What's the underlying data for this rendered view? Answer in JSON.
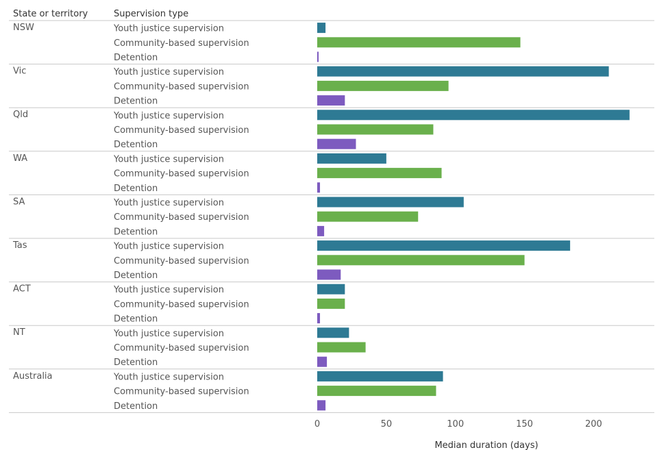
{
  "chart_data": {
    "type": "bar",
    "orientation": "horizontal",
    "column_headers": {
      "group": "State or territory",
      "category": "Supervision type"
    },
    "groups": [
      "NSW",
      "Vic",
      "Qld",
      "WA",
      "SA",
      "Tas",
      "ACT",
      "NT",
      "Australia"
    ],
    "categories": [
      "Youth justice supervision",
      "Community-based supervision",
      "Detention"
    ],
    "colors": {
      "Youth justice supervision": "#2e7a94",
      "Community-based supervision": "#6ab04c",
      "Detention": "#7d5bbf"
    },
    "values": [
      [
        6,
        147,
        1
      ],
      [
        211,
        95,
        20
      ],
      [
        226,
        84,
        28
      ],
      [
        50,
        90,
        2
      ],
      [
        106,
        73,
        5
      ],
      [
        183,
        150,
        17
      ],
      [
        20,
        20,
        2
      ],
      [
        23,
        35,
        7
      ],
      [
        91,
        86,
        6
      ]
    ],
    "xlabel": "Median duration (days)",
    "xlim": [
      0,
      235
    ],
    "xticks": [
      0,
      50,
      100,
      150,
      200
    ],
    "grid": false,
    "legend": "none"
  }
}
